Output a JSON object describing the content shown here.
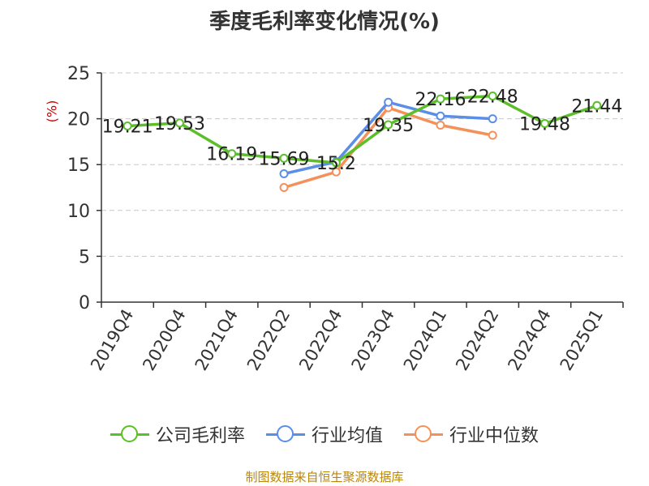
{
  "chart_data": {
    "type": "line",
    "title": "季度毛利率变化情况(%)",
    "ylabel": "(%)",
    "xlabel": "",
    "ylim": [
      0,
      25
    ],
    "yticks": [
      0,
      5,
      10,
      15,
      20,
      25
    ],
    "grid": true,
    "legend_position": "bottom",
    "categories": [
      "2019Q4",
      "2020Q4",
      "2021Q4",
      "2022Q2",
      "2022Q4",
      "2023Q4",
      "2024Q1",
      "2024Q2",
      "2024Q4",
      "2025Q1"
    ],
    "series": [
      {
        "name": "公司毛利率",
        "color": "#5cbf2a",
        "labels": true,
        "values": [
          19.21,
          19.53,
          16.19,
          15.69,
          15.2,
          19.35,
          22.16,
          22.48,
          19.48,
          21.44
        ],
        "value_labels": [
          "19.21",
          "19.53",
          "16.19",
          "15.69",
          "15.2",
          "19.35",
          "22.16",
          "22.48",
          "19.48",
          "21.44"
        ]
      },
      {
        "name": "行业均值",
        "color": "#5b8ee6",
        "labels": false,
        "values": [
          null,
          null,
          null,
          14.0,
          15.3,
          21.8,
          20.3,
          20.0,
          null,
          null
        ]
      },
      {
        "name": "行业中位数",
        "color": "#f4915b",
        "labels": false,
        "values": [
          null,
          null,
          null,
          12.5,
          14.2,
          21.2,
          19.3,
          18.2,
          null,
          null
        ]
      }
    ]
  },
  "source": "制图数据来自恒生聚源数据库"
}
